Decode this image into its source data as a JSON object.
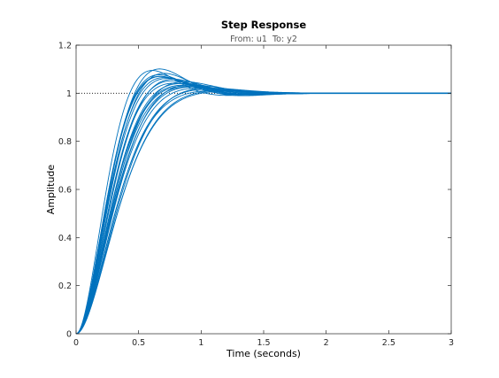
{
  "chart_data": {
    "type": "line",
    "title": "Step Response",
    "subtitle": "From: u1  To: y2",
    "xlabel": "Time (seconds)",
    "ylabel": "Amplitude",
    "xlim": [
      0,
      3
    ],
    "ylim": [
      0,
      1.2
    ],
    "xticks": [
      0,
      0.5,
      1,
      1.5,
      2,
      2.5,
      3
    ],
    "xtick_labels": [
      "0",
      "0.5",
      "1",
      "1.5",
      "2",
      "2.5",
      "3"
    ],
    "yticks": [
      0,
      0.2,
      0.4,
      0.6,
      0.8,
      1,
      1.2
    ],
    "ytick_labels": [
      "0",
      "0.2",
      "0.4",
      "0.6",
      "0.8",
      "1",
      "1.2"
    ],
    "grid": false,
    "reference_line": {
      "y": 1,
      "style": "dotted",
      "color": "#000000"
    },
    "series_color": "#0072bd",
    "series_family": {
      "count": 24,
      "description": "Monte Carlo family of step responses of an uncertain second-order system",
      "settle_time": [
        1.5,
        1.9
      ],
      "peak_value_range": [
        1.01,
        1.1
      ],
      "peak_time_range": [
        0.62,
        0.82
      ]
    },
    "series": [
      {
        "values": [
          [
            0,
            0
          ],
          [
            0.1,
            0.27
          ],
          [
            0.2,
            0.55
          ],
          [
            0.3,
            0.78
          ],
          [
            0.4,
            0.93
          ],
          [
            0.5,
            1.02
          ],
          [
            0.6,
            1.07
          ],
          [
            0.7,
            1.09
          ],
          [
            0.8,
            1.09
          ],
          [
            0.9,
            1.08
          ],
          [
            1,
            1.06
          ],
          [
            1.2,
            1.03
          ],
          [
            1.5,
            1.01
          ],
          [
            1.85,
            1.0
          ],
          [
            3,
            1.0
          ]
        ]
      },
      {
        "values": [
          [
            0,
            0
          ],
          [
            0.1,
            0.25
          ],
          [
            0.2,
            0.52
          ],
          [
            0.3,
            0.75
          ],
          [
            0.4,
            0.91
          ],
          [
            0.5,
            1.0
          ],
          [
            0.6,
            1.05
          ],
          [
            0.7,
            1.07
          ],
          [
            0.8,
            1.07
          ],
          [
            0.9,
            1.06
          ],
          [
            1,
            1.05
          ],
          [
            1.2,
            1.03
          ],
          [
            1.5,
            1.01
          ],
          [
            1.85,
            1.0
          ],
          [
            3,
            1.0
          ]
        ]
      },
      {
        "values": [
          [
            0,
            0
          ],
          [
            0.1,
            0.22
          ],
          [
            0.2,
            0.48
          ],
          [
            0.3,
            0.7
          ],
          [
            0.4,
            0.87
          ],
          [
            0.5,
            0.97
          ],
          [
            0.6,
            1.02
          ],
          [
            0.7,
            1.04
          ],
          [
            0.8,
            1.05
          ],
          [
            0.9,
            1.04
          ],
          [
            1,
            1.03
          ],
          [
            1.2,
            1.02
          ],
          [
            1.5,
            1.01
          ],
          [
            1.85,
            1.0
          ],
          [
            3,
            1.0
          ]
        ]
      },
      {
        "values": [
          [
            0,
            0
          ],
          [
            0.1,
            0.2
          ],
          [
            0.2,
            0.45
          ],
          [
            0.3,
            0.66
          ],
          [
            0.4,
            0.83
          ],
          [
            0.5,
            0.94
          ],
          [
            0.6,
            1.0
          ],
          [
            0.7,
            1.02
          ],
          [
            0.8,
            1.03
          ],
          [
            0.9,
            1.02
          ],
          [
            1,
            1.02
          ],
          [
            1.2,
            1.01
          ],
          [
            1.5,
            1.0
          ],
          [
            1.85,
            1.0
          ],
          [
            3,
            1.0
          ]
        ]
      }
    ]
  }
}
